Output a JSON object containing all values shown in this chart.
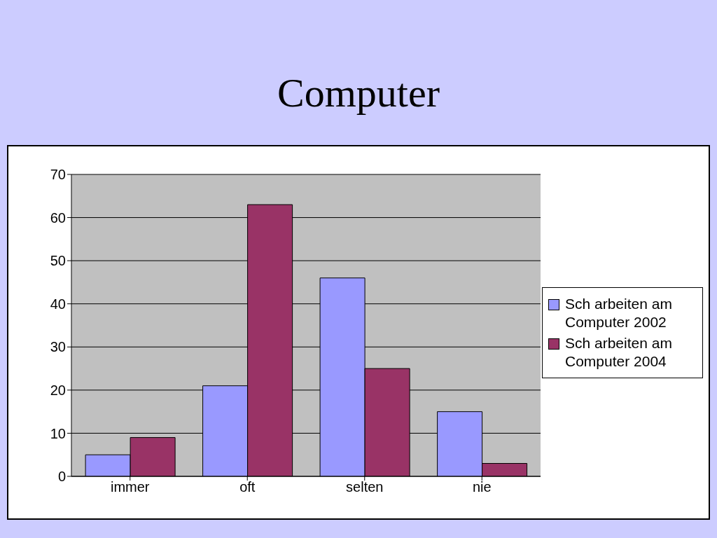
{
  "chart_data": {
    "type": "bar",
    "title": "Computer",
    "categories": [
      "immer",
      "oft",
      "selten",
      "nie"
    ],
    "series": [
      {
        "name": "Sch arbeiten am Computer 2002",
        "color": "#9999ff",
        "values": [
          5,
          21,
          46,
          15
        ]
      },
      {
        "name": "Sch arbeiten am Computer 2004",
        "color": "#993366",
        "values": [
          9,
          63,
          25,
          3
        ]
      }
    ],
    "ylim": [
      0,
      70
    ],
    "yticks": [
      0,
      10,
      20,
      30,
      40,
      50,
      60,
      70
    ],
    "grid": "y",
    "legend": "right"
  }
}
